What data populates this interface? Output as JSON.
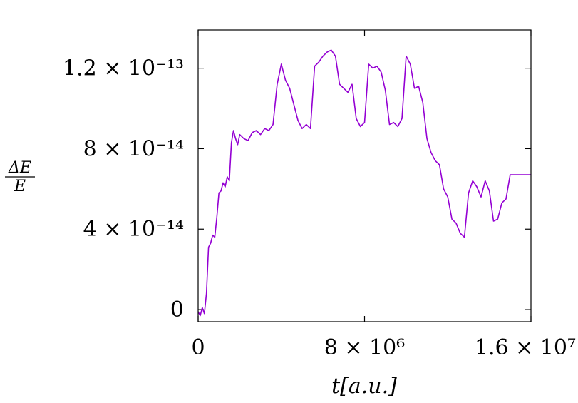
{
  "chart_data": {
    "type": "line",
    "title": "",
    "xlabel": "t[a.u.]",
    "ylabel": {
      "numerator": "ΔE",
      "denominator": "E"
    },
    "xlim": [
      0,
      16000000
    ],
    "ylim": [
      -6e-15,
      1.39e-13
    ],
    "grid": false,
    "legend": "none",
    "colors": {
      "series": "#9400d3",
      "frame": "#000000"
    },
    "x_ticks": [
      {
        "value": 0,
        "label": "0"
      },
      {
        "value": 8000000,
        "label": "8 × 10⁶"
      },
      {
        "value": 16000000,
        "label": "1.6 × 10⁷"
      }
    ],
    "y_ticks": [
      {
        "value": 0,
        "label": "0"
      },
      {
        "value": 4e-14,
        "label": "4 × 10⁻¹⁴"
      },
      {
        "value": 8e-14,
        "label": "8 × 10⁻¹⁴"
      },
      {
        "value": 1.2e-13,
        "label": "1.2 × 10⁻¹³"
      }
    ],
    "series": [
      {
        "x": [
          0,
          100000,
          200000,
          300000,
          400000,
          500000,
          600000,
          700000,
          800000,
          900000,
          1000000,
          1100000,
          1200000,
          1300000,
          1400000,
          1500000,
          1600000,
          1700000,
          1800000,
          1900000,
          2000000,
          2200000,
          2400000,
          2600000,
          2800000,
          3000000,
          3200000,
          3400000,
          3600000,
          3800000,
          4000000,
          4200000,
          4400000,
          4600000,
          4800000,
          5000000,
          5200000,
          5400000,
          5600000,
          5800000,
          6000000,
          6200000,
          6400000,
          6600000,
          6800000,
          7000000,
          7200000,
          7400000,
          7600000,
          7800000,
          8000000,
          8200000,
          8400000,
          8600000,
          8800000,
          9000000,
          9200000,
          9400000,
          9600000,
          9800000,
          10000000,
          10200000,
          10400000,
          10600000,
          10800000,
          11000000,
          11200000,
          11400000,
          11600000,
          11800000,
          12000000,
          12200000,
          12400000,
          12600000,
          12800000,
          13000000,
          13200000,
          13400000,
          13600000,
          13800000,
          14000000,
          14200000,
          14400000,
          14600000,
          14800000,
          15000000,
          15500000,
          16000000
        ],
        "y": [
          -1e-15,
          -3e-15,
          1e-15,
          -2e-15,
          8e-15,
          3.1e-14,
          3.3e-14,
          3.7e-14,
          3.6e-14,
          4.6e-14,
          5.8e-14,
          5.9e-14,
          6.3e-14,
          6.1e-14,
          6.6e-14,
          6.4e-14,
          8.3e-14,
          8.9e-14,
          8.5e-14,
          8.2e-14,
          8.7e-14,
          8.5e-14,
          8.4e-14,
          8.8e-14,
          8.9e-14,
          8.7e-14,
          9e-14,
          8.9e-14,
          9.2e-14,
          1.12e-13,
          1.22e-13,
          1.14e-13,
          1.1e-13,
          1.02e-13,
          9.4e-14,
          9e-14,
          9.2e-14,
          9e-14,
          1.21e-13,
          1.23e-13,
          1.26e-13,
          1.28e-13,
          1.29e-13,
          1.26e-13,
          1.12e-13,
          1.1e-13,
          1.08e-13,
          1.12e-13,
          9.5e-14,
          9.1e-14,
          9.3e-14,
          1.22e-13,
          1.2e-13,
          1.21e-13,
          1.18e-13,
          1.09e-13,
          9.2e-14,
          9.3e-14,
          9.1e-14,
          9.5e-14,
          1.26e-13,
          1.22e-13,
          1.1e-13,
          1.11e-13,
          1.03e-13,
          8.5e-14,
          7.8e-14,
          7.4e-14,
          7.2e-14,
          6e-14,
          5.6e-14,
          4.5e-14,
          4.3e-14,
          3.8e-14,
          3.6e-14,
          5.8e-14,
          6.4e-14,
          6.1e-14,
          5.6e-14,
          6.4e-14,
          5.9e-14,
          4.4e-14,
          4.5e-14,
          5.3e-14,
          5.5e-14,
          6.7e-14,
          6.7e-14,
          6.7e-14
        ]
      }
    ]
  }
}
